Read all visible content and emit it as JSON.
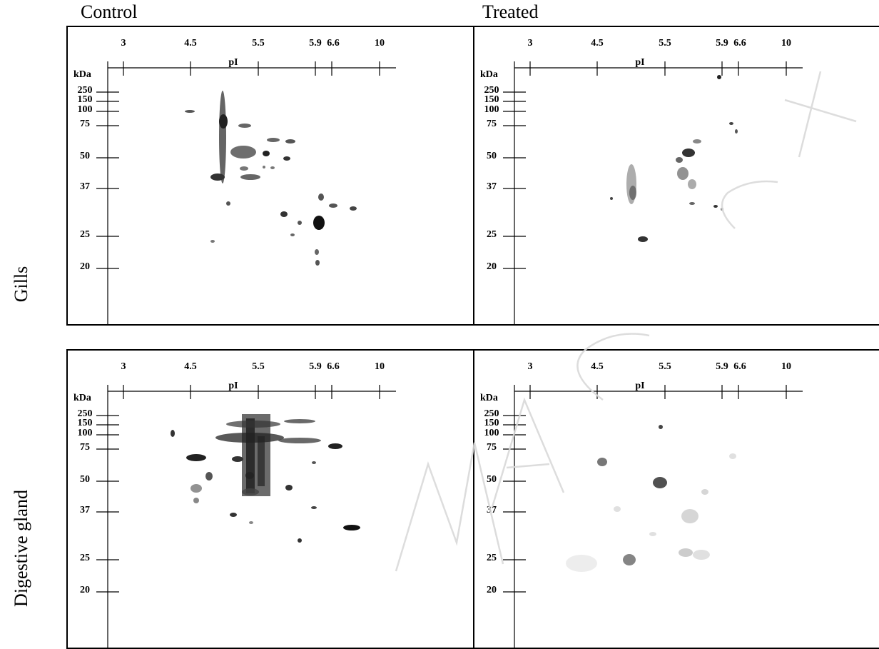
{
  "columns": {
    "control": "Control",
    "treated": "Treated"
  },
  "rows": {
    "gills": "Gills",
    "digestive": "Digestive gland"
  },
  "axis": {
    "x_title": "pI",
    "y_title": "kDa",
    "pi_ticks": [
      "3",
      "4.5",
      "5.5",
      "5.9",
      "6.6",
      "10"
    ],
    "kda_ticks": [
      "250",
      "150",
      "100",
      "75",
      "50",
      "37",
      "25",
      "20"
    ]
  }
}
